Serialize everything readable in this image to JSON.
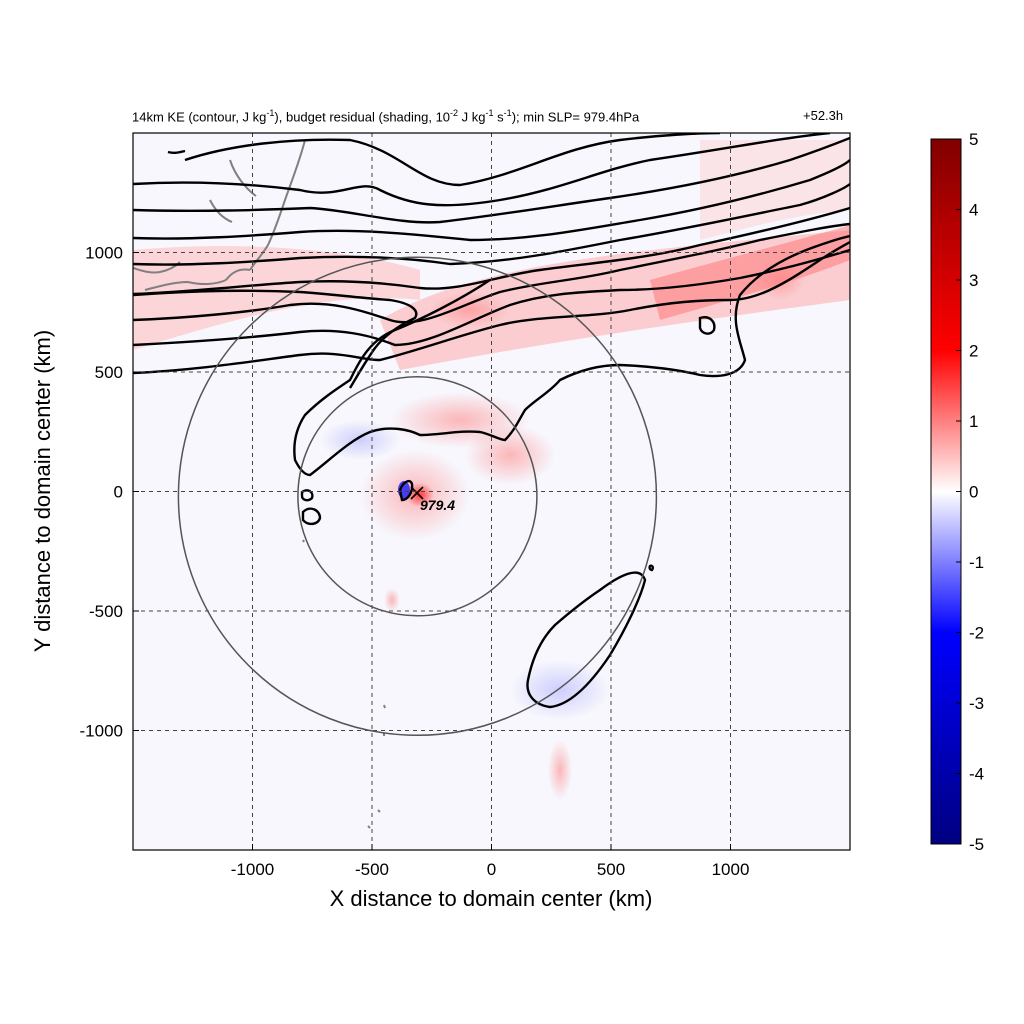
{
  "chart_data": {
    "type": "heatmap",
    "title_parts": {
      "a": "14km KE (contour, J kg",
      "a_sup": "-1",
      "b": "), budget residual (shading, 10",
      "b_sup": "-2",
      "c": " J kg",
      "c_sup": "-1",
      "d": " s",
      "d_sup": "-1",
      "e": "); min SLP= 979.4hPa"
    },
    "time_label": "+52.3h",
    "xlabel": "X distance to domain center (km)",
    "ylabel": "Y distance to domain center (km)",
    "xlim": [
      -1500,
      1500
    ],
    "ylim": [
      -1500,
      1500
    ],
    "xticks": [
      -1000,
      -500,
      0,
      500,
      1000
    ],
    "yticks": [
      -1000,
      -500,
      0,
      500,
      1000
    ],
    "grid": true,
    "colorbar": {
      "range": [
        -5,
        5
      ],
      "ticks": [
        5,
        4,
        3,
        2,
        1,
        0,
        -1,
        -2,
        -3,
        -4,
        -5
      ],
      "colormap": [
        "#000080",
        "#0000ff",
        "#ffffff",
        "#ff0000",
        "#800000"
      ]
    },
    "storm_center": {
      "x": -310,
      "y": -20
    },
    "min_slp_label": "979.4",
    "range_circles_km": [
      500,
      1000
    ]
  }
}
